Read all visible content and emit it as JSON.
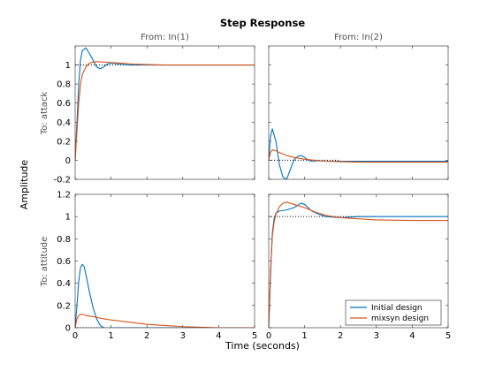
{
  "chart_data": {
    "type": "line",
    "title": "Step Response",
    "xlabel": "Time (seconds)",
    "ylabel": "Amplitude",
    "column_titles": [
      "From: In(1)",
      "From: In(2)"
    ],
    "row_titles": [
      "To: attack",
      "To: attitude"
    ],
    "xlim": [
      0,
      5
    ],
    "xticks": [
      0,
      1,
      2,
      3,
      4,
      5
    ],
    "legend": {
      "placement": "bottom-right",
      "entries": [
        "Initial design",
        "mixsyn design"
      ]
    },
    "colors": {
      "Initial design": "#0072BD",
      "mixsyn design": "#D95319",
      "reference": "#000000"
    },
    "grid": false,
    "panels": [
      {
        "row": 0,
        "col": 0,
        "ylim": [
          -0.2,
          1.2
        ],
        "yticks": [
          "-0.2",
          "0",
          "0.2",
          "0.4",
          "0.6",
          "0.8",
          "1"
        ],
        "reference": {
          "value": 1,
          "x": [
            0,
            5
          ]
        },
        "series": [
          {
            "name": "Initial design",
            "x": [
              0,
              0.05,
              0.1,
              0.15,
              0.2,
              0.3,
              0.4,
              0.5,
              0.6,
              0.7,
              0.8,
              0.9,
              1.0,
              1.2,
              1.5,
              2.0,
              3.0,
              5.0
            ],
            "y": [
              0,
              0.4,
              0.8,
              1.05,
              1.15,
              1.18,
              1.12,
              1.05,
              0.98,
              0.96,
              0.98,
              1.01,
              1.02,
              1.01,
              1.0,
              1.0,
              1.0,
              1.0
            ]
          },
          {
            "name": "mixsyn design",
            "x": [
              0,
              0.05,
              0.1,
              0.15,
              0.2,
              0.3,
              0.4,
              0.5,
              0.6,
              0.8,
              1.0,
              1.3,
              1.6,
              2.0,
              2.5,
              3.0,
              4.0,
              5.0
            ],
            "y": [
              0,
              0.3,
              0.6,
              0.8,
              0.9,
              0.98,
              1.02,
              1.03,
              1.035,
              1.03,
              1.025,
              1.02,
              1.01,
              1.005,
              1.0,
              1.0,
              1.0,
              1.0
            ]
          }
        ]
      },
      {
        "row": 0,
        "col": 1,
        "ylim": [
          -0.2,
          1.2
        ],
        "yticks": [],
        "reference": {
          "value": 0,
          "x": [
            0,
            2
          ]
        },
        "series": [
          {
            "name": "Initial design",
            "x": [
              0,
              0.05,
              0.1,
              0.2,
              0.3,
              0.4,
              0.5,
              0.6,
              0.7,
              0.8,
              0.9,
              1.0,
              1.1,
              1.2,
              1.4,
              1.6,
              2.0,
              3.0,
              5.0
            ],
            "y": [
              0,
              0.25,
              0.33,
              0.2,
              -0.05,
              -0.18,
              -0.2,
              -0.1,
              0.0,
              0.04,
              0.05,
              0.03,
              0.0,
              -0.01,
              -0.005,
              -0.01,
              -0.01,
              -0.01,
              -0.01
            ]
          },
          {
            "name": "mixsyn design",
            "x": [
              0,
              0.05,
              0.1,
              0.2,
              0.3,
              0.5,
              0.7,
              1.0,
              1.3,
              1.6,
              2.0,
              2.5,
              3.0,
              4.0,
              5.0
            ],
            "y": [
              0,
              0.08,
              0.11,
              0.1,
              0.08,
              0.05,
              0.03,
              0.01,
              0.0,
              -0.01,
              -0.015,
              -0.02,
              -0.02,
              -0.02,
              -0.02
            ]
          }
        ]
      },
      {
        "row": 1,
        "col": 0,
        "ylim": [
          0,
          1.2
        ],
        "yticks": [
          "0",
          "0.2",
          "0.4",
          "0.6",
          "0.8",
          "1",
          "1.2"
        ],
        "reference": {
          "value": 0,
          "x": [
            0,
            5
          ]
        },
        "series": [
          {
            "name": "Initial design",
            "x": [
              0,
              0.05,
              0.1,
              0.15,
              0.2,
              0.25,
              0.3,
              0.4,
              0.5,
              0.6,
              0.7,
              0.8,
              0.9,
              1.0,
              1.2,
              2.0,
              5.0
            ],
            "y": [
              0,
              0.2,
              0.42,
              0.54,
              0.57,
              0.55,
              0.48,
              0.32,
              0.18,
              0.08,
              0.02,
              0.0,
              -0.01,
              0.0,
              0.0,
              0.0,
              0.0
            ]
          },
          {
            "name": "mixsyn design",
            "x": [
              0,
              0.05,
              0.1,
              0.15,
              0.2,
              0.3,
              0.5,
              0.8,
              1.0,
              1.5,
              2.0,
              2.5,
              3.0,
              4.0,
              5.0
            ],
            "y": [
              0,
              0.08,
              0.11,
              0.12,
              0.12,
              0.11,
              0.1,
              0.08,
              0.07,
              0.05,
              0.03,
              0.02,
              0.01,
              0.0,
              0.0
            ]
          }
        ]
      },
      {
        "row": 1,
        "col": 1,
        "ylim": [
          0,
          1.2
        ],
        "yticks": [],
        "reference": {
          "value": 1,
          "x": [
            0,
            3
          ]
        },
        "series": [
          {
            "name": "Initial design",
            "x": [
              0,
              0.05,
              0.1,
              0.15,
              0.2,
              0.3,
              0.5,
              0.7,
              0.8,
              0.9,
              1.0,
              1.1,
              1.2,
              1.4,
              1.6,
              2.0,
              2.5,
              3.0,
              5.0
            ],
            "y": [
              0,
              0.45,
              0.85,
              0.98,
              1.03,
              1.05,
              1.06,
              1.08,
              1.1,
              1.12,
              1.11,
              1.08,
              1.05,
              1.02,
              1.0,
              0.99,
              1.0,
              1.0,
              1.0
            ]
          },
          {
            "name": "mixsyn design",
            "x": [
              0,
              0.05,
              0.1,
              0.15,
              0.2,
              0.3,
              0.4,
              0.5,
              0.6,
              0.8,
              1.0,
              1.3,
              1.6,
              2.0,
              2.5,
              3.0,
              4.0,
              5.0
            ],
            "y": [
              0,
              0.5,
              0.82,
              0.95,
              1.02,
              1.09,
              1.12,
              1.13,
              1.12,
              1.1,
              1.08,
              1.04,
              1.01,
              0.99,
              0.98,
              0.97,
              0.965,
              0.965
            ]
          }
        ]
      }
    ]
  }
}
